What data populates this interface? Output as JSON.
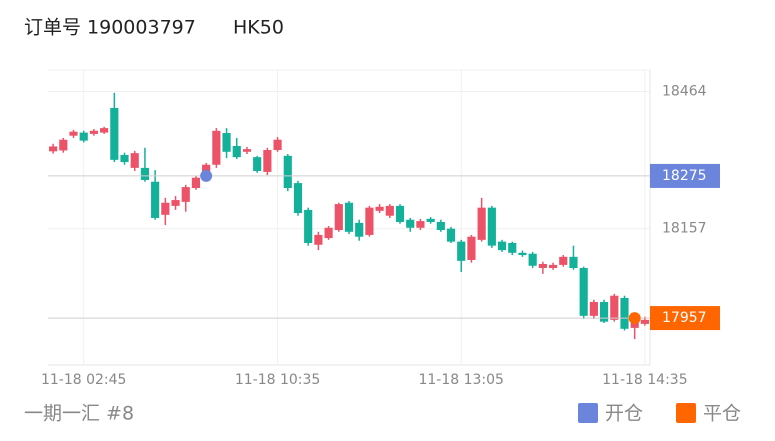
{
  "header": {
    "order": "订单号 190003797",
    "symbol": "HK50"
  },
  "footer": {
    "text": "一期一汇 #8"
  },
  "chart_data": {
    "type": "candlestick",
    "up_color": "#ec5368",
    "down_color": "#14b19a",
    "open": [
      18330,
      18332,
      18365,
      18372,
      18369,
      18372,
      18427,
      18322,
      18293,
      18293,
      18262,
      18188,
      18208,
      18217,
      18248,
      18271,
      18300,
      18371,
      18342,
      18329,
      18317,
      18284,
      18333,
      18320,
      18259,
      18199,
      18121,
      18136,
      18154,
      18215,
      18170,
      18143,
      18197,
      18186,
      18208,
      18177,
      18159,
      18179,
      18172,
      18157,
      18128,
      18087,
      18132,
      18204,
      18128,
      18125,
      18103,
      18101,
      18069,
      18069,
      18076,
      18094,
      18069,
      17962,
      17993,
      17953,
      18002,
      17935,
      17944
    ],
    "high": [
      18347,
      18360,
      18378,
      18376,
      18380,
      18385,
      18461,
      18327,
      18331,
      18338,
      18288,
      18226,
      18230,
      18255,
      18275,
      18304,
      18382,
      18382,
      18360,
      18340,
      18320,
      18338,
      18362,
      18324,
      18264,
      18204,
      18150,
      18163,
      18215,
      18219,
      18177,
      18208,
      18212,
      18212,
      18212,
      18181,
      18179,
      18183,
      18177,
      18161,
      18132,
      18143,
      18226,
      18208,
      18132,
      18128,
      18108,
      18105,
      18083,
      18081,
      18098,
      18119,
      18072,
      17998,
      17998,
      18011,
      18007,
      17955,
      17960
    ],
    "low": [
      18325,
      18327,
      18360,
      18350,
      18365,
      18369,
      18306,
      18300,
      18286,
      18262,
      18177,
      18165,
      18199,
      18195,
      18244,
      18266,
      18293,
      18315,
      18313,
      18324,
      18282,
      18277,
      18329,
      18241,
      18186,
      18119,
      18109,
      18132,
      18150,
      18145,
      18130,
      18139,
      18192,
      18181,
      18168,
      18150,
      18154,
      18168,
      18150,
      18125,
      18060,
      18081,
      18128,
      18114,
      18105,
      18098,
      18094,
      18069,
      18056,
      18065,
      18072,
      18065,
      17955,
      17955,
      17946,
      17949,
      17929,
      17910,
      17940
    ],
    "close": [
      18341,
      18356,
      18374,
      18354,
      18376,
      18382,
      18311,
      18306,
      18326,
      18266,
      18181,
      18215,
      18221,
      18250,
      18271,
      18300,
      18376,
      18329,
      18317,
      18335,
      18286,
      18333,
      18356,
      18248,
      18192,
      18125,
      18143,
      18159,
      18212,
      18150,
      18139,
      18204,
      18206,
      18208,
      18172,
      18159,
      18174,
      18172,
      18154,
      18128,
      18085,
      18139,
      18204,
      18119,
      18109,
      18103,
      18098,
      18074,
      18078,
      18076,
      18094,
      18069,
      17962,
      17993,
      17949,
      18007,
      17933,
      17949,
      17953
    ],
    "series": [
      {
        "name": "开仓",
        "color": "#6b84dc",
        "x": 15,
        "value": 18275
      },
      {
        "name": "平仓",
        "color": "#ff6600",
        "x": 57,
        "value": 17957
      }
    ],
    "xlim": [
      -0.5,
      58.5
    ],
    "xticks": [
      {
        "value": 3,
        "label": "11-18 02:45"
      },
      {
        "value": 22,
        "label": "11-18 10:35"
      },
      {
        "value": 40,
        "label": "11-18 13:05"
      },
      {
        "value": 58,
        "label": "11-18 14:35"
      }
    ],
    "ylim": [
      17852,
      18512
    ],
    "yticks": [
      18464,
      18157
    ],
    "grid": true
  }
}
